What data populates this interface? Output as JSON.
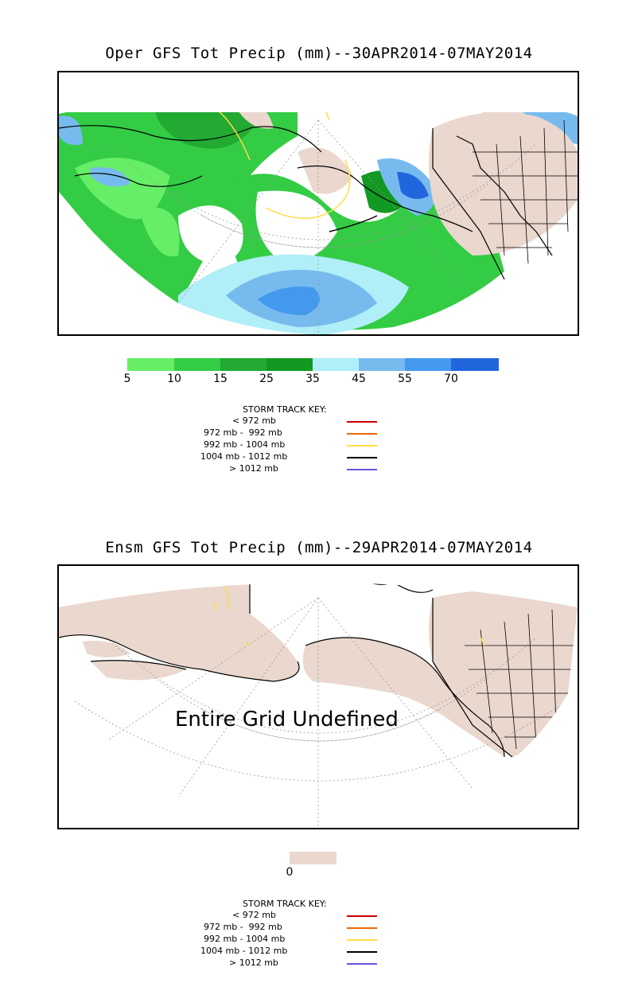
{
  "panel1": {
    "title": "Oper GFS Tot Precip (mm)--30APR2014-07MAY2014",
    "colorbar": {
      "colors": [
        "#66ee66",
        "#33cc44",
        "#22aa33",
        "#119922",
        "#b0eef8",
        "#77bbee",
        "#4499ee",
        "#2266dd",
        "#1122bb"
      ],
      "labels": [
        "5",
        "10",
        "15",
        "25",
        "35",
        "45",
        "55",
        "70"
      ]
    }
  },
  "panel2": {
    "title": "Ensm GFS Tot Precip (mm)--29APR2014-07MAY2014",
    "overlay_text": "Entire Grid Undefined",
    "colorbar": {
      "colors": [
        "#ead7cd"
      ],
      "labels": [
        "0"
      ]
    }
  },
  "storm_key": {
    "title": "STORM TRACK KEY:",
    "rows": [
      {
        "label": "< 972 mb",
        "color": "#cc0000"
      },
      {
        "label": "972 mb -  992 mb",
        "color": "#ee6600"
      },
      {
        "label": "992 mb - 1004 mb",
        "color": "#ffdd44"
      },
      {
        "label": "1004 mb - 1012 mb",
        "color": "#000000"
      },
      {
        "label": "> 1012 mb",
        "color": "#6655dd"
      }
    ]
  },
  "colors": {
    "land_tan": "#ead7cd",
    "frame": "#000000"
  }
}
